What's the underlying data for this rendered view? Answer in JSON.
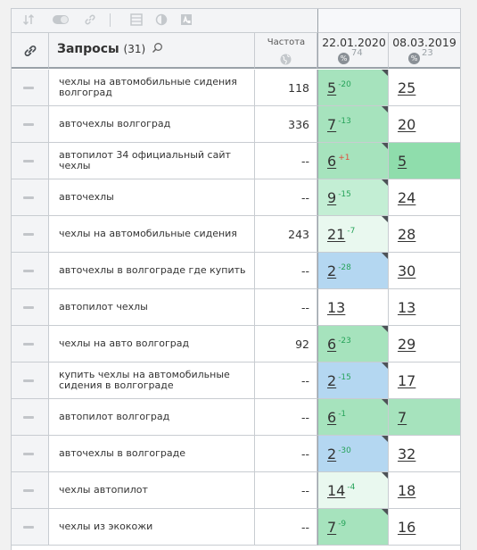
{
  "toolbar": {
    "icons": [
      "sort-icon",
      "toggle-icon",
      "link-icon",
      "table-icon",
      "contrast-icon",
      "text-icon"
    ]
  },
  "header": {
    "link_icon": "link-icon",
    "queries_label": "Запросы",
    "queries_count": "(31)",
    "frequency_label": "Частота",
    "dates": [
      {
        "date": "22.01.2020",
        "count": "74"
      },
      {
        "date": "08.03.2019",
        "count": "23"
      }
    ]
  },
  "colors": {
    "green": "#a6e3bd",
    "green_strong": "#8fddac",
    "green_light": "#c3eed4",
    "green_pale": "#e9f8ef",
    "blue": "#b4d7f1",
    "up": "#27a35a",
    "down": "#e14b3b"
  },
  "rows": [
    {
      "query": "чехлы на автомобильные сидения волгоград",
      "freq": "118",
      "d1": {
        "pos": "5",
        "chg": "-20",
        "chg_color": "#27a35a",
        "bg": "#a6e3bd",
        "corner": true
      },
      "d2": {
        "pos": "25",
        "bg": "#ffffff",
        "corner": false
      }
    },
    {
      "query": "авточехлы волгоград",
      "freq": "336",
      "d1": {
        "pos": "7",
        "chg": "-13",
        "chg_color": "#27a35a",
        "bg": "#a6e3bd",
        "corner": true
      },
      "d2": {
        "pos": "20",
        "bg": "#ffffff",
        "corner": false
      }
    },
    {
      "query": "автопилот 34 официальный сайт чехлы",
      "freq": "--",
      "d1": {
        "pos": "6",
        "chg": "+1",
        "chg_color": "#e14b3b",
        "bg": "#a6e3bd",
        "corner": true
      },
      "d2": {
        "pos": "5",
        "bg": "#8fddac",
        "corner": false
      }
    },
    {
      "query": "авточехлы",
      "freq": "--",
      "d1": {
        "pos": "9",
        "chg": "-15",
        "chg_color": "#27a35a",
        "bg": "#c3eed4",
        "corner": true
      },
      "d2": {
        "pos": "24",
        "bg": "#ffffff",
        "corner": false
      }
    },
    {
      "query": "чехлы на автомобильные сидения",
      "freq": "243",
      "d1": {
        "pos": "21",
        "chg": "-7",
        "chg_color": "#27a35a",
        "bg": "#e9f8ef",
        "corner": true
      },
      "d2": {
        "pos": "28",
        "bg": "#ffffff",
        "corner": false
      }
    },
    {
      "query": "авточехлы в волгограде где купить",
      "freq": "--",
      "d1": {
        "pos": "2",
        "chg": "-28",
        "chg_color": "#27a35a",
        "bg": "#b4d7f1",
        "corner": true
      },
      "d2": {
        "pos": "30",
        "bg": "#ffffff",
        "corner": false
      }
    },
    {
      "query": "автопилот чехлы",
      "freq": "--",
      "d1": {
        "pos": "13",
        "chg": "",
        "chg_color": "#27a35a",
        "bg": "#ffffff",
        "corner": false
      },
      "d2": {
        "pos": "13",
        "bg": "#ffffff",
        "corner": false
      }
    },
    {
      "query": "чехлы на авто волгоград",
      "freq": "92",
      "d1": {
        "pos": "6",
        "chg": "-23",
        "chg_color": "#27a35a",
        "bg": "#a6e3bd",
        "corner": true
      },
      "d2": {
        "pos": "29",
        "bg": "#ffffff",
        "corner": false
      }
    },
    {
      "query": "купить чехлы на автомобильные сидения в волгограде",
      "freq": "--",
      "d1": {
        "pos": "2",
        "chg": "-15",
        "chg_color": "#27a35a",
        "bg": "#b4d7f1",
        "corner": true
      },
      "d2": {
        "pos": "17",
        "bg": "#ffffff",
        "corner": false
      }
    },
    {
      "query": "автопилот волгоград",
      "freq": "--",
      "d1": {
        "pos": "6",
        "chg": "-1",
        "chg_color": "#27a35a",
        "bg": "#a6e3bd",
        "corner": true
      },
      "d2": {
        "pos": "7",
        "bg": "#a6e3bd",
        "corner": false
      }
    },
    {
      "query": "авточехлы в волгограде",
      "freq": "--",
      "d1": {
        "pos": "2",
        "chg": "-30",
        "chg_color": "#27a35a",
        "bg": "#b4d7f1",
        "corner": true
      },
      "d2": {
        "pos": "32",
        "bg": "#ffffff",
        "corner": false
      }
    },
    {
      "query": "чехлы автопилот",
      "freq": "--",
      "d1": {
        "pos": "14",
        "chg": "-4",
        "chg_color": "#27a35a",
        "bg": "#e9f8ef",
        "corner": true
      },
      "d2": {
        "pos": "18",
        "bg": "#ffffff",
        "corner": false
      }
    },
    {
      "query": "чехлы из экокожи",
      "freq": "--",
      "d1": {
        "pos": "7",
        "chg": "-9",
        "chg_color": "#27a35a",
        "bg": "#a6e3bd",
        "corner": true
      },
      "d2": {
        "pos": "16",
        "bg": "#ffffff",
        "corner": false
      }
    }
  ]
}
